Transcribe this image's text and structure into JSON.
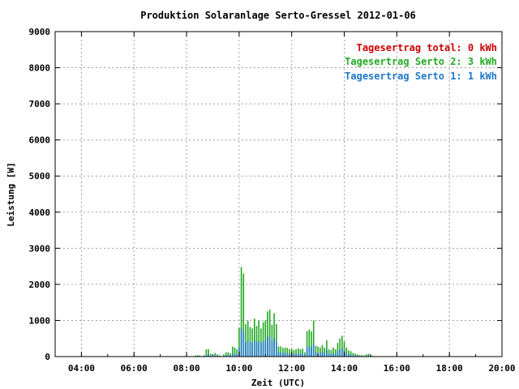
{
  "chart_data": {
    "type": "bar",
    "title": "Produktion Solaranlage Serto-Gressel 2012-01-06",
    "xlabel": "Zeit (UTC)",
    "ylabel": "Leistung [W]",
    "ylim": [
      0,
      9000
    ],
    "xlim": [
      "03:00",
      "20:00"
    ],
    "x_ticks": [
      "04:00",
      "06:00",
      "08:00",
      "10:00",
      "12:00",
      "14:00",
      "16:00",
      "18:00",
      "20:00"
    ],
    "y_ticks": [
      "0",
      "1000",
      "2000",
      "3000",
      "4000",
      "5000",
      "6000",
      "7000",
      "8000",
      "9000"
    ],
    "grid": true,
    "legend_position": "top-right",
    "legend": [
      {
        "label": "Tagesertrag total: 0 kWh",
        "color": "#cc0000"
      },
      {
        "label": "Tagesertrag Serto 2: 3 kWh",
        "color": "#22aa22"
      },
      {
        "label": "Tagesertrag Serto 1: 1 kWh",
        "color": "#1f78c8"
      }
    ],
    "x": [
      "08:20",
      "08:25",
      "08:30",
      "08:40",
      "08:45",
      "08:50",
      "08:55",
      "09:05",
      "09:10",
      "09:15",
      "09:25",
      "09:30",
      "09:35",
      "09:40",
      "09:45",
      "09:50",
      "09:55",
      "10:00",
      "10:05",
      "10:10",
      "10:15",
      "10:20",
      "10:25",
      "10:30",
      "10:35",
      "10:40",
      "10:45",
      "10:50",
      "10:55",
      "11:00",
      "11:05",
      "11:10",
      "11:15",
      "11:20",
      "11:25",
      "11:30",
      "11:35",
      "11:40",
      "11:45",
      "11:50",
      "11:55",
      "12:00",
      "12:05",
      "12:10",
      "12:15",
      "12:20",
      "12:25",
      "12:30",
      "12:35",
      "12:40",
      "12:45",
      "12:50",
      "12:55",
      "13:00",
      "13:05",
      "13:10",
      "13:15",
      "13:20",
      "13:25",
      "13:30",
      "13:35",
      "13:40",
      "13:45",
      "13:50",
      "13:55",
      "14:00",
      "14:05",
      "14:10",
      "14:15",
      "14:20",
      "14:25",
      "14:30",
      "14:35",
      "14:40",
      "14:45",
      "14:50",
      "14:55",
      "15:00",
      "15:05",
      "15:10",
      "15:15",
      "15:20"
    ],
    "series": [
      {
        "name": "Serto 2",
        "color": "#22aa22",
        "values": [
          30,
          40,
          30,
          40,
          200,
          200,
          80,
          100,
          60,
          40,
          60,
          120,
          120,
          90,
          280,
          250,
          200,
          800,
          2480,
          2300,
          900,
          1000,
          820,
          780,
          1050,
          850,
          1000,
          780,
          950,
          1000,
          1250,
          1300,
          880,
          1200,
          900,
          280,
          280,
          240,
          250,
          240,
          200,
          220,
          180,
          200,
          230,
          200,
          220,
          120,
          700,
          750,
          700,
          1000,
          300,
          280,
          250,
          320,
          240,
          450,
          200,
          180,
          250,
          200,
          380,
          500,
          580,
          420,
          250,
          170,
          150,
          100,
          80,
          60,
          40,
          40,
          30,
          60,
          80,
          40,
          20,
          10,
          10,
          5
        ]
      },
      {
        "name": "Serto 1",
        "color": "#1f78c8",
        "values": [
          10,
          15,
          10,
          15,
          60,
          60,
          30,
          40,
          20,
          15,
          20,
          40,
          40,
          30,
          90,
          80,
          70,
          250,
          800,
          700,
          400,
          450,
          400,
          380,
          450,
          420,
          430,
          380,
          420,
          450,
          550,
          560,
          420,
          520,
          420,
          120,
          120,
          100,
          100,
          100,
          80,
          90,
          70,
          80,
          90,
          80,
          90,
          50,
          250,
          280,
          260,
          350,
          120,
          110,
          100,
          130,
          100,
          180,
          80,
          70,
          100,
          80,
          150,
          200,
          220,
          160,
          100,
          70,
          60,
          40,
          30,
          25,
          15,
          15,
          10,
          25,
          30,
          15,
          8,
          4,
          4,
          2
        ]
      }
    ]
  }
}
